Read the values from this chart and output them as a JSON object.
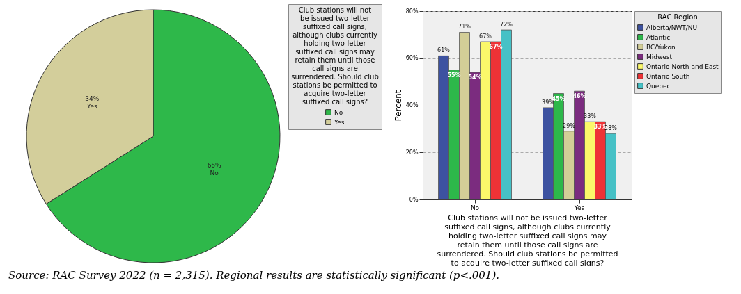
{
  "chart_data": [
    {
      "type": "pie",
      "categories": [
        "No",
        "Yes"
      ],
      "values": [
        66,
        34
      ],
      "colors": [
        "#2eb84a",
        "#d3ce9b"
      ],
      "value_labels": [
        "66%",
        "34%"
      ],
      "legend_title": "Club stations will not be issued two-letter suffixed call signs, although clubs currently holding two-letter suffixed call signs may retain them until those call signs are surrendered. Should club stations be permitted to acquire two-letter suffixed call signs?",
      "legend": "right",
      "annotations": [
        "Source: RAC Survey 2022 (n = 2,315). Regional results are statistically significant (p<.001)."
      ]
    },
    {
      "type": "bar",
      "categories": [
        "No",
        "Yes"
      ],
      "xlabel": "Club stations will not be issued two-letter suffixed call signs, although clubs currently holding two-letter suffixed call signs may retain them until those call signs are surrendered. Should club stations be permitted to acquire two-letter suffixed call signs?",
      "ylabel": "Percent",
      "legend_title": "RAC Region",
      "legend": "right",
      "grid": "y",
      "ylim": [
        0,
        80
      ],
      "yticks": [
        {
          "value": 0,
          "label": "0%"
        },
        {
          "value": 20,
          "label": "20%"
        },
        {
          "value": 40,
          "label": "40%"
        },
        {
          "value": 60,
          "label": "60%"
        },
        {
          "value": 80,
          "label": "80%"
        }
      ],
      "series": [
        {
          "name": "Alberta/NWT/NU",
          "color": "#3d52a1",
          "values": [
            61,
            39
          ],
          "value_labels": [
            "61%",
            "39%"
          ]
        },
        {
          "name": "Atlantic",
          "color": "#2db84a",
          "values": [
            55,
            45
          ],
          "value_labels": [
            "55%",
            "45%"
          ]
        },
        {
          "name": "BC/Yukon",
          "color": "#d3ce97",
          "values": [
            71,
            29
          ],
          "value_labels": [
            "71%",
            "29%"
          ]
        },
        {
          "name": "Midwest",
          "color": "#7b2c7f",
          "values": [
            54,
            46
          ],
          "value_labels": [
            "54%",
            "46%"
          ]
        },
        {
          "name": "Ontario North and East",
          "color": "#fbf86a",
          "values": [
            67,
            33
          ],
          "value_labels": [
            "67%",
            "33%"
          ]
        },
        {
          "name": "Ontario South",
          "color": "#ee3236",
          "values": [
            67,
            33
          ],
          "value_labels": [
            "67%",
            "33%"
          ]
        },
        {
          "name": "Quebec",
          "color": "#46c1c6",
          "values": [
            72,
            28
          ],
          "value_labels": [
            "72%",
            "28%"
          ]
        }
      ]
    }
  ]
}
